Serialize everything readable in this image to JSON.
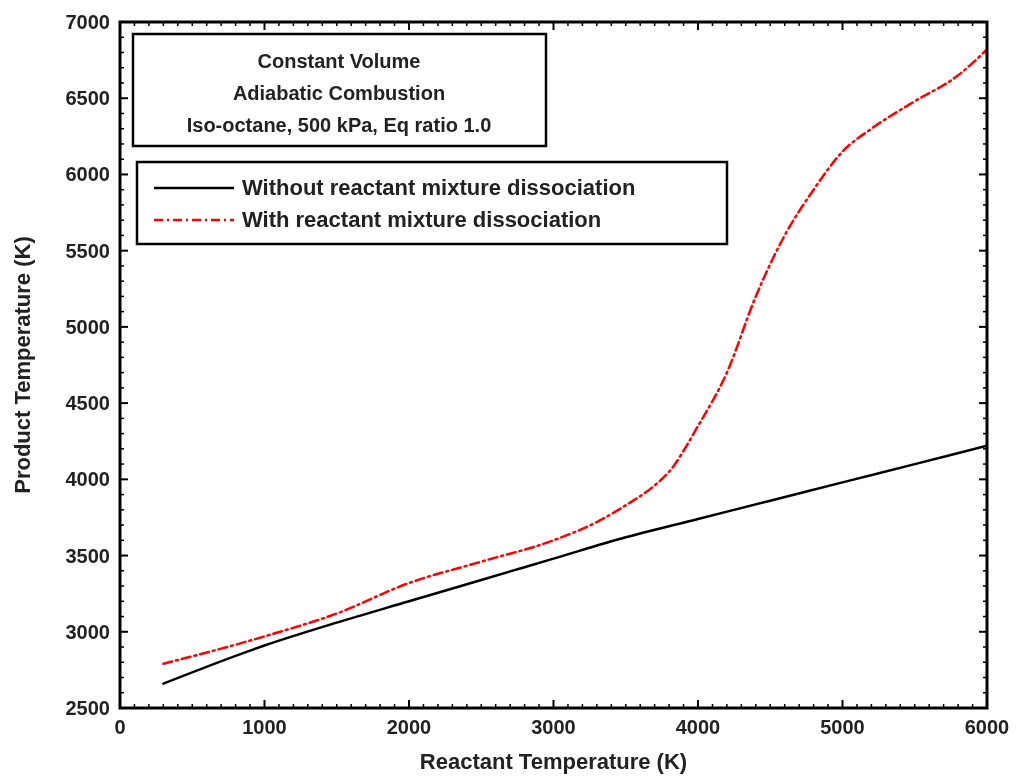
{
  "chart_data": {
    "type": "line",
    "xlabel": "Reactant Temperature (K)",
    "ylabel": "Product Temperature (K)",
    "annotations": [
      "Constant Volume",
      "Adiabatic Combustion",
      "Iso-octane, 500 kPa, Eq ratio 1.0"
    ],
    "xlim": [
      0,
      6000
    ],
    "xticks": [
      0,
      1000,
      2000,
      3000,
      4000,
      5000,
      6000
    ],
    "ylim": [
      2500,
      7000
    ],
    "yticks": [
      2500,
      3000,
      3500,
      4000,
      4500,
      5000,
      5500,
      6000,
      6500,
      7000
    ],
    "grid": false,
    "legend": "top left",
    "series": [
      {
        "name": "Without reactant mixture dissociation",
        "color": "#000000",
        "line_style": "solid",
        "x": [
          300,
          1000,
          1500,
          2000,
          2500,
          3000,
          3500,
          4000,
          4500,
          5000,
          5500,
          6000
        ],
        "values": [
          2660,
          2910,
          3060,
          3200,
          3340,
          3480,
          3620,
          3740,
          3860,
          3980,
          4100,
          4220
        ]
      },
      {
        "name": "With reactant mixture dissociation",
        "color": "#ff0000",
        "line_style": "dashdot",
        "x": [
          300,
          1000,
          1500,
          2000,
          2500,
          3000,
          3300,
          3500,
          3700,
          3800,
          4000,
          4200,
          4400,
          4600,
          4800,
          5000,
          5200,
          5500,
          5800,
          6000
        ],
        "values": [
          2790,
          2970,
          3120,
          3320,
          3460,
          3600,
          3720,
          3830,
          3960,
          4050,
          4350,
          4700,
          5200,
          5600,
          5900,
          6150,
          6300,
          6480,
          6650,
          6820
        ]
      }
    ]
  }
}
